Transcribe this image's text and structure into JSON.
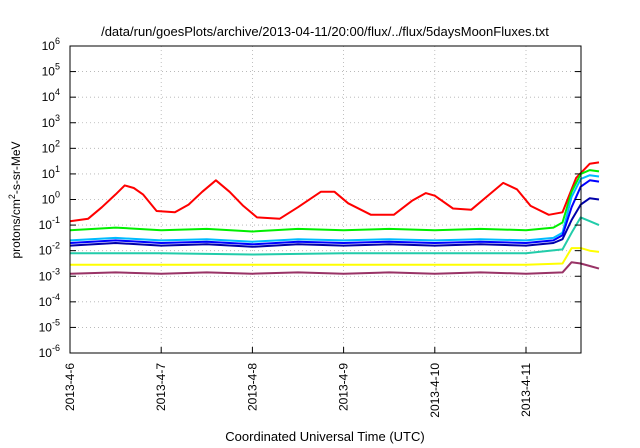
{
  "chart_data": {
    "type": "line",
    "title": "/data/run/goesPlots/archive/2013-04-11/20:00/flux/../flux/5daysMoonFluxes.txt",
    "xlabel": "Coordinated Universal Time (UTC)",
    "ylabel": {
      "base": "protons/cm",
      "sup": "2",
      "rest": "-s-sr-MeV"
    },
    "y_scale": "log",
    "ylim": [
      -6,
      6
    ],
    "y_ticks": [
      {
        "base": "10",
        "exp": "6"
      },
      {
        "base": "10",
        "exp": "5"
      },
      {
        "base": "10",
        "exp": "4"
      },
      {
        "base": "10",
        "exp": "3"
      },
      {
        "base": "10",
        "exp": "2"
      },
      {
        "base": "10",
        "exp": "1"
      },
      {
        "base": "10",
        "exp": "0"
      },
      {
        "base": "10",
        "exp": "-1"
      },
      {
        "base": "10",
        "exp": "-2"
      },
      {
        "base": "10",
        "exp": "-3"
      },
      {
        "base": "10",
        "exp": "-4"
      },
      {
        "base": "10",
        "exp": "-5"
      },
      {
        "base": "10",
        "exp": "-6"
      }
    ],
    "x_ticks": [
      "2013-4-6",
      "2013-4-7",
      "2013-4-8",
      "2013-4-9",
      "2013-4-10",
      "2013-4-11"
    ],
    "xlim_days": [
      0,
      5.8
    ],
    "grid": true,
    "legend": "none",
    "series": [
      {
        "color": "#ff0000",
        "width": 2,
        "points": [
          [
            0,
            -0.85
          ],
          [
            0.2,
            -0.75
          ],
          [
            0.35,
            -0.3
          ],
          [
            0.5,
            0.2
          ],
          [
            0.6,
            0.55
          ],
          [
            0.7,
            0.45
          ],
          [
            0.8,
            0.2
          ],
          [
            0.95,
            -0.45
          ],
          [
            1.15,
            -0.5
          ],
          [
            1.3,
            -0.2
          ],
          [
            1.45,
            0.3
          ],
          [
            1.6,
            0.75
          ],
          [
            1.75,
            0.3
          ],
          [
            1.9,
            -0.25
          ],
          [
            2.05,
            -0.7
          ],
          [
            2.3,
            -0.75
          ],
          [
            2.5,
            -0.3
          ],
          [
            2.75,
            0.3
          ],
          [
            2.9,
            0.3
          ],
          [
            3.05,
            -0.15
          ],
          [
            3.3,
            -0.6
          ],
          [
            3.55,
            -0.6
          ],
          [
            3.75,
            -0.05
          ],
          [
            3.9,
            0.25
          ],
          [
            4.0,
            0.15
          ],
          [
            4.2,
            -0.35
          ],
          [
            4.4,
            -0.4
          ],
          [
            4.6,
            0.2
          ],
          [
            4.75,
            0.65
          ],
          [
            4.9,
            0.4
          ],
          [
            5.05,
            -0.25
          ],
          [
            5.25,
            -0.6
          ],
          [
            5.4,
            -0.5
          ],
          [
            5.55,
            0.85
          ],
          [
            5.7,
            1.4
          ],
          [
            5.8,
            1.45
          ]
        ]
      },
      {
        "color": "#00ee00",
        "width": 2,
        "points": [
          [
            0,
            -1.2
          ],
          [
            0.5,
            -1.1
          ],
          [
            1.0,
            -1.2
          ],
          [
            1.5,
            -1.15
          ],
          [
            2.0,
            -1.25
          ],
          [
            2.5,
            -1.15
          ],
          [
            3.0,
            -1.2
          ],
          [
            3.5,
            -1.15
          ],
          [
            4.0,
            -1.2
          ],
          [
            4.5,
            -1.15
          ],
          [
            5.0,
            -1.2
          ],
          [
            5.3,
            -1.1
          ],
          [
            5.4,
            -0.9
          ],
          [
            5.5,
            0.3
          ],
          [
            5.6,
            1.0
          ],
          [
            5.7,
            1.15
          ],
          [
            5.8,
            1.1
          ]
        ]
      },
      {
        "color": "#00bbff",
        "width": 2,
        "points": [
          [
            0,
            -1.6
          ],
          [
            0.5,
            -1.5
          ],
          [
            1.0,
            -1.6
          ],
          [
            1.5,
            -1.55
          ],
          [
            2.0,
            -1.65
          ],
          [
            2.5,
            -1.55
          ],
          [
            3.0,
            -1.6
          ],
          [
            3.5,
            -1.55
          ],
          [
            4.0,
            -1.6
          ],
          [
            4.5,
            -1.55
          ],
          [
            5.0,
            -1.6
          ],
          [
            5.3,
            -1.5
          ],
          [
            5.4,
            -1.3
          ],
          [
            5.5,
            0.1
          ],
          [
            5.6,
            0.8
          ],
          [
            5.7,
            0.95
          ],
          [
            5.8,
            0.9
          ]
        ]
      },
      {
        "color": "#0000ff",
        "width": 2,
        "points": [
          [
            0,
            -1.7
          ],
          [
            0.5,
            -1.6
          ],
          [
            1.0,
            -1.7
          ],
          [
            1.5,
            -1.65
          ],
          [
            2.0,
            -1.75
          ],
          [
            2.5,
            -1.65
          ],
          [
            3.0,
            -1.7
          ],
          [
            3.5,
            -1.65
          ],
          [
            4.0,
            -1.7
          ],
          [
            4.5,
            -1.65
          ],
          [
            5.0,
            -1.7
          ],
          [
            5.3,
            -1.6
          ],
          [
            5.4,
            -1.4
          ],
          [
            5.5,
            -0.3
          ],
          [
            5.6,
            0.5
          ],
          [
            5.7,
            0.75
          ],
          [
            5.8,
            0.7
          ]
        ]
      },
      {
        "color": "#0000aa",
        "width": 2,
        "points": [
          [
            0,
            -1.8
          ],
          [
            0.5,
            -1.7
          ],
          [
            1.0,
            -1.8
          ],
          [
            1.5,
            -1.75
          ],
          [
            2.0,
            -1.85
          ],
          [
            2.5,
            -1.75
          ],
          [
            3.0,
            -1.8
          ],
          [
            3.5,
            -1.75
          ],
          [
            4.0,
            -1.8
          ],
          [
            4.5,
            -1.75
          ],
          [
            5.0,
            -1.8
          ],
          [
            5.3,
            -1.7
          ],
          [
            5.4,
            -1.55
          ],
          [
            5.5,
            -0.8
          ],
          [
            5.6,
            -0.2
          ],
          [
            5.7,
            0.05
          ],
          [
            5.8,
            0.0
          ]
        ]
      },
      {
        "color": "#22ccaa",
        "width": 2,
        "points": [
          [
            0,
            -2.1
          ],
          [
            1.0,
            -2.1
          ],
          [
            2.0,
            -2.15
          ],
          [
            3.0,
            -2.1
          ],
          [
            4.0,
            -2.1
          ],
          [
            5.0,
            -2.1
          ],
          [
            5.4,
            -1.95
          ],
          [
            5.5,
            -1.3
          ],
          [
            5.6,
            -0.7
          ],
          [
            5.7,
            -0.85
          ],
          [
            5.8,
            -1.0
          ]
        ]
      },
      {
        "color": "#ffff00",
        "width": 2,
        "points": [
          [
            0,
            -2.55
          ],
          [
            1.0,
            -2.55
          ],
          [
            2.0,
            -2.55
          ],
          [
            3.0,
            -2.55
          ],
          [
            4.0,
            -2.55
          ],
          [
            5.0,
            -2.55
          ],
          [
            5.4,
            -2.5
          ],
          [
            5.5,
            -1.9
          ],
          [
            5.6,
            -1.9
          ],
          [
            5.7,
            -2.0
          ],
          [
            5.8,
            -2.05
          ]
        ]
      },
      {
        "color": "#993366",
        "width": 2,
        "points": [
          [
            0,
            -2.9
          ],
          [
            0.5,
            -2.85
          ],
          [
            1.0,
            -2.9
          ],
          [
            1.5,
            -2.85
          ],
          [
            2.0,
            -2.9
          ],
          [
            2.5,
            -2.85
          ],
          [
            3.0,
            -2.9
          ],
          [
            3.5,
            -2.85
          ],
          [
            4.0,
            -2.9
          ],
          [
            4.5,
            -2.85
          ],
          [
            5.0,
            -2.9
          ],
          [
            5.4,
            -2.85
          ],
          [
            5.5,
            -2.45
          ],
          [
            5.6,
            -2.5
          ],
          [
            5.7,
            -2.6
          ],
          [
            5.8,
            -2.7
          ]
        ]
      }
    ]
  }
}
